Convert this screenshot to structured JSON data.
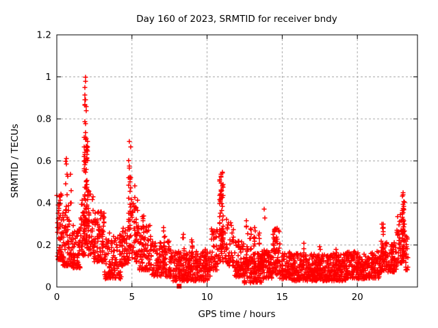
{
  "window": {
    "description": "gnuplot-style scatter plot, white background, no toolbar or chrome"
  },
  "chart_data": {
    "type": "scatter",
    "title": "Day 160 of 2023, SRMTID for receiver bndy",
    "xlabel": "GPS time / hours",
    "ylabel": "SRMTID / TECUs",
    "xlim": [
      0,
      24
    ],
    "ylim": [
      0,
      1.2
    ],
    "xticks": [
      0,
      5,
      10,
      15,
      20
    ],
    "xtick_labels": [
      "0",
      "5",
      "10",
      "15",
      "20"
    ],
    "yticks": [
      0,
      0.2,
      0.4,
      0.6,
      0.8,
      1.0,
      1.2
    ],
    "ytick_labels": [
      "0",
      "0.2",
      "0.4",
      "0.6",
      "0.8",
      "1",
      "1.2"
    ],
    "grid": "dashed",
    "legend": "none",
    "marker": "plus-cross",
    "marker_size_px": 7,
    "colors": {
      "points": "#ff0000",
      "grid": "#a9a9a9",
      "axis": "#000000",
      "text": "#000000",
      "background": "#ffffff"
    },
    "summary": {
      "max_value": 1.01,
      "max_value_time_hours": 1.9,
      "data_start_hour": 0.0,
      "data_end_hour": 23.4,
      "approx_point_count": 2800,
      "notable_spikes_hours": [
        0.7,
        1.9,
        4.85,
        10.95,
        12.65,
        21.7,
        23.05
      ],
      "isolated_square_marker": {
        "t": 8.14,
        "value": 0.004
      }
    },
    "seed": 1606023,
    "series": [
      {
        "name": "SRMTID",
        "bands": [
          {
            "t0": 0.02,
            "t1": 0.35,
            "n": 60,
            "lo": 0.13,
            "hi": 0.45,
            "skew": 1.6
          },
          {
            "t0": 0.35,
            "t1": 0.92,
            "n": 75,
            "lo": 0.1,
            "hi": 0.38,
            "skew": 1.8
          },
          {
            "t0": 0.92,
            "t1": 1.55,
            "n": 80,
            "lo": 0.09,
            "hi": 0.3,
            "skew": 1.7
          },
          {
            "t0": 1.55,
            "t1": 1.85,
            "n": 35,
            "lo": 0.15,
            "hi": 0.42,
            "skew": 1.4
          },
          {
            "t0": 1.85,
            "t1": 2.45,
            "n": 60,
            "lo": 0.15,
            "hi": 0.46,
            "skew": 1.5
          },
          {
            "t0": 2.45,
            "t1": 3.2,
            "n": 90,
            "lo": 0.12,
            "hi": 0.36,
            "skew": 1.8
          },
          {
            "t0": 3.2,
            "t1": 4.3,
            "n": 120,
            "lo": 0.04,
            "hi": 0.26,
            "skew": 1.6
          },
          {
            "t0": 4.3,
            "t1": 4.72,
            "n": 45,
            "lo": 0.1,
            "hi": 0.3,
            "skew": 1.5
          },
          {
            "t0": 4.72,
            "t1": 5.15,
            "n": 40,
            "lo": 0.12,
            "hi": 0.42,
            "skew": 1.4
          },
          {
            "t0": 5.15,
            "t1": 5.5,
            "n": 32,
            "lo": 0.12,
            "hi": 0.42,
            "skew": 1.9
          },
          {
            "t0": 5.5,
            "t1": 6.3,
            "n": 90,
            "lo": 0.08,
            "hi": 0.3,
            "skew": 1.8
          },
          {
            "t0": 6.3,
            "t1": 7.7,
            "n": 140,
            "lo": 0.05,
            "hi": 0.22,
            "skew": 1.6
          },
          {
            "t0": 7.7,
            "t1": 10.25,
            "n": 260,
            "lo": 0.03,
            "hi": 0.17,
            "skew": 1.5
          },
          {
            "t0": 10.25,
            "t1": 10.72,
            "n": 45,
            "lo": 0.08,
            "hi": 0.28,
            "skew": 1.4
          },
          {
            "t0": 10.72,
            "t1": 11.35,
            "n": 40,
            "lo": 0.12,
            "hi": 0.35,
            "skew": 1.4
          },
          {
            "t0": 11.35,
            "t1": 11.78,
            "n": 40,
            "lo": 0.1,
            "hi": 0.32,
            "skew": 1.6
          },
          {
            "t0": 11.78,
            "t1": 12.45,
            "n": 75,
            "lo": 0.05,
            "hi": 0.22,
            "skew": 1.6
          },
          {
            "t0": 12.45,
            "t1": 13.65,
            "n": 135,
            "lo": 0.02,
            "hi": 0.16,
            "skew": 1.3
          },
          {
            "t0": 13.65,
            "t1": 14.35,
            "n": 80,
            "lo": 0.04,
            "hi": 0.18,
            "skew": 1.5
          },
          {
            "t0": 14.35,
            "t1": 14.85,
            "n": 55,
            "lo": 0.06,
            "hi": 0.28,
            "skew": 1.6
          },
          {
            "t0": 14.85,
            "t1": 15.55,
            "n": 75,
            "lo": 0.04,
            "hi": 0.17,
            "skew": 1.4
          },
          {
            "t0": 15.55,
            "t1": 19.3,
            "n": 480,
            "lo": 0.03,
            "hi": 0.16,
            "skew": 1.5
          },
          {
            "t0": 19.3,
            "t1": 21.55,
            "n": 260,
            "lo": 0.04,
            "hi": 0.17,
            "skew": 1.5
          },
          {
            "t0": 21.55,
            "t1": 22.62,
            "n": 115,
            "lo": 0.07,
            "hi": 0.22,
            "skew": 1.6
          },
          {
            "t0": 22.62,
            "t1": 23.18,
            "n": 70,
            "lo": 0.1,
            "hi": 0.35,
            "skew": 1.3
          },
          {
            "t0": 23.18,
            "t1": 23.38,
            "n": 20,
            "lo": 0.08,
            "hi": 0.25,
            "skew": 1.3
          }
        ],
        "columns": [
          {
            "t": 0.68,
            "spread": 0.1,
            "n": 12,
            "lo": 0.25,
            "hi": 0.66
          },
          {
            "t": 0.95,
            "spread": 0.04,
            "n": 4,
            "lo": 0.35,
            "hi": 0.56
          },
          {
            "t": 1.89,
            "spread": 0.07,
            "n": 48,
            "lo": 0.25,
            "hi": 1.01
          },
          {
            "t": 2.02,
            "spread": 0.06,
            "n": 30,
            "lo": 0.2,
            "hi": 0.74
          },
          {
            "t": 3.0,
            "spread": 0.06,
            "n": 10,
            "lo": 0.15,
            "hi": 0.36
          },
          {
            "t": 4.85,
            "spread": 0.08,
            "n": 22,
            "lo": 0.18,
            "hi": 0.7
          },
          {
            "t": 5.22,
            "spread": 0.05,
            "n": 10,
            "lo": 0.15,
            "hi": 0.5
          },
          {
            "t": 5.75,
            "spread": 0.05,
            "n": 10,
            "lo": 0.12,
            "hi": 0.34
          },
          {
            "t": 7.15,
            "spread": 0.05,
            "n": 12,
            "lo": 0.1,
            "hi": 0.3
          },
          {
            "t": 8.45,
            "spread": 0.05,
            "n": 10,
            "lo": 0.08,
            "hi": 0.26
          },
          {
            "t": 9.0,
            "spread": 0.05,
            "n": 10,
            "lo": 0.08,
            "hi": 0.24
          },
          {
            "t": 9.9,
            "spread": 0.05,
            "n": 8,
            "lo": 0.08,
            "hi": 0.22
          },
          {
            "t": 10.95,
            "spread": 0.12,
            "n": 55,
            "lo": 0.18,
            "hi": 0.55
          },
          {
            "t": 12.65,
            "spread": 0.06,
            "n": 16,
            "lo": 0.1,
            "hi": 0.33
          },
          {
            "t": 12.9,
            "spread": 0.05,
            "n": 12,
            "lo": 0.08,
            "hi": 0.28
          },
          {
            "t": 13.15,
            "spread": 0.05,
            "n": 12,
            "lo": 0.08,
            "hi": 0.3
          },
          {
            "t": 13.45,
            "spread": 0.05,
            "n": 10,
            "lo": 0.06,
            "hi": 0.26
          },
          {
            "t": 14.5,
            "spread": 0.07,
            "n": 14,
            "lo": 0.08,
            "hi": 0.28
          },
          {
            "t": 16.4,
            "spread": 0.05,
            "n": 8,
            "lo": 0.08,
            "hi": 0.21
          },
          {
            "t": 17.5,
            "spread": 0.05,
            "n": 8,
            "lo": 0.08,
            "hi": 0.2
          },
          {
            "t": 18.6,
            "spread": 0.05,
            "n": 8,
            "lo": 0.08,
            "hi": 0.21
          },
          {
            "t": 21.7,
            "spread": 0.06,
            "n": 18,
            "lo": 0.12,
            "hi": 0.31
          },
          {
            "t": 23.05,
            "spread": 0.07,
            "n": 28,
            "lo": 0.15,
            "hi": 0.45
          }
        ],
        "outliers": [
          [
            13.78,
            0.37
          ],
          [
            13.84,
            0.33
          ]
        ],
        "square_point": [
          8.14,
          0.004
        ]
      }
    ]
  }
}
